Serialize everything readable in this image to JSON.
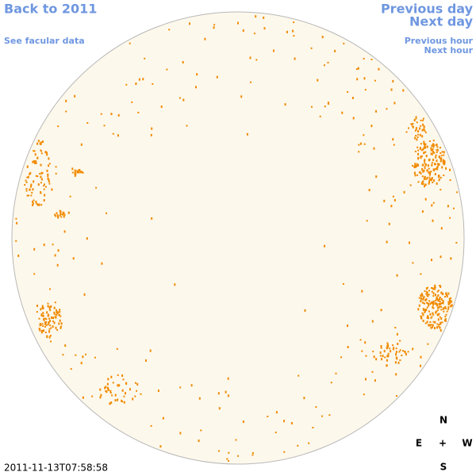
{
  "links": {
    "back": "Back to 2011",
    "facular": "See facular data",
    "previous_day": "Previous day",
    "next_day": "Next day",
    "previous_hour": "Previous hour",
    "next_hour": "Next hour"
  },
  "timestamp": "2011-11-13T07:58:58",
  "compass": {
    "north": "N",
    "east": "E",
    "center": "+",
    "west": "W",
    "south": "S"
  }
}
